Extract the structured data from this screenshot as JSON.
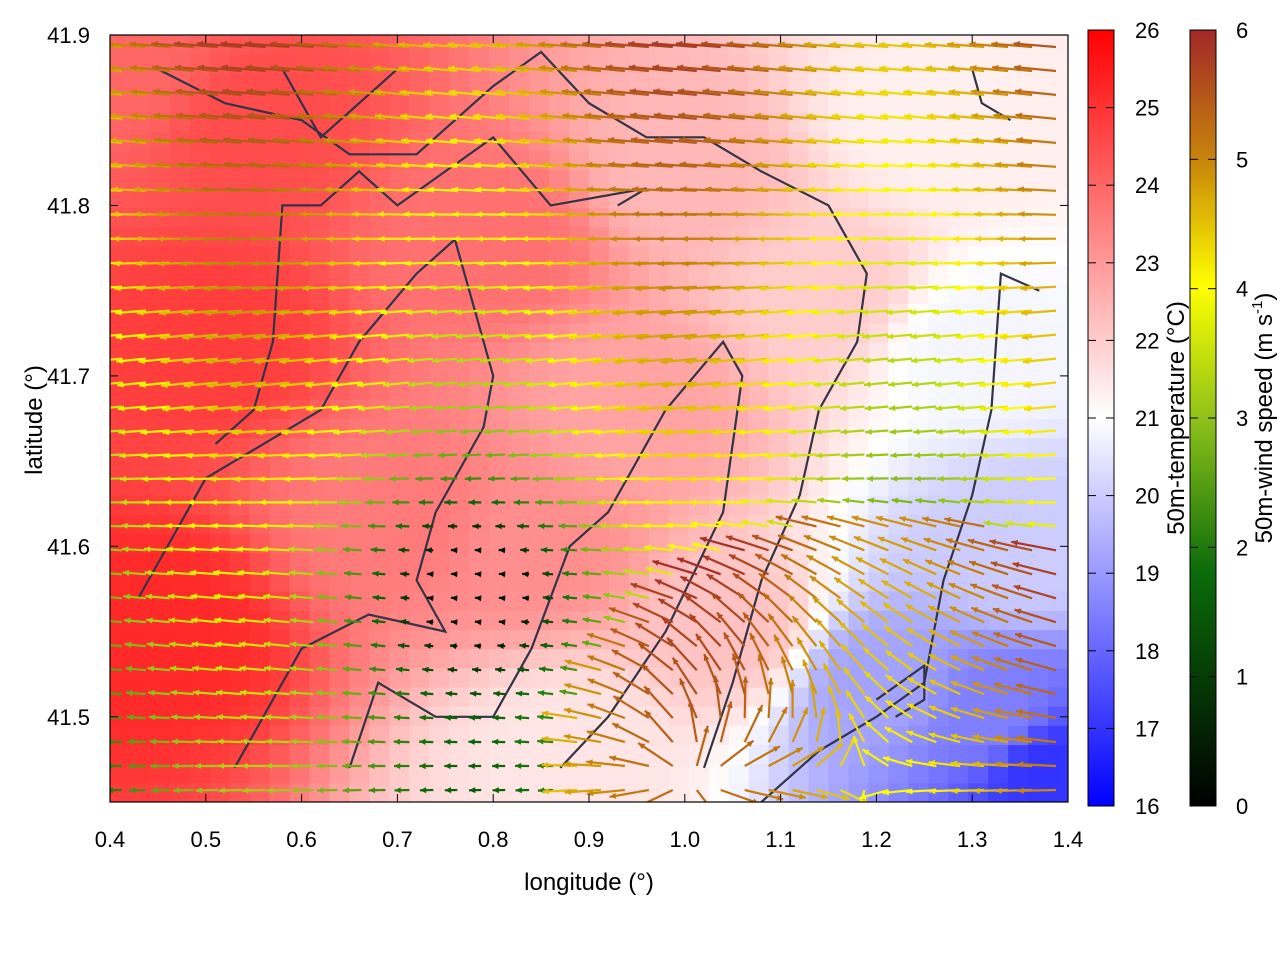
{
  "chart_data": {
    "type": "heatmap",
    "overlay": "wind-vector-field",
    "xlabel": "longitude (°)",
    "ylabel": "latitude (°)",
    "xlim": [
      0.4,
      1.4
    ],
    "ylim": [
      41.45,
      41.9
    ],
    "x_ticks": [
      "0.4",
      "0.5",
      "0.6",
      "0.7",
      "0.8",
      "0.9",
      "1.0",
      "1.1",
      "1.2",
      "1.3",
      "1.4"
    ],
    "y_ticks": [
      "41.5",
      "41.6",
      "41.7",
      "41.8",
      "41.9"
    ],
    "grid": false,
    "temperature_colorbar": {
      "label": "50m-temperature (°C)",
      "range": [
        16,
        26
      ],
      "ticks": [
        "16",
        "17",
        "18",
        "19",
        "20",
        "21",
        "22",
        "23",
        "24",
        "25",
        "26"
      ],
      "colors": [
        "#0000ff",
        "#ffffff",
        "#ff0000"
      ]
    },
    "wind_colorbar": {
      "label_main": "50m-wind speed (m s",
      "label_sup": "-1",
      "label_end": ")",
      "range": [
        0,
        6
      ],
      "ticks": [
        "0",
        "1",
        "2",
        "3",
        "4",
        "5",
        "6"
      ],
      "colors": [
        "#000000",
        "#0a6b0a",
        "#8fc21a",
        "#ffff00",
        "#c8860a",
        "#a02828"
      ]
    },
    "temperature_field": [
      {
        "lon": 0.45,
        "lat": 41.55,
        "t": 25.2
      },
      {
        "lon": 0.5,
        "lat": 41.72,
        "t": 24.8
      },
      {
        "lon": 0.55,
        "lat": 41.85,
        "t": 24.5
      },
      {
        "lon": 0.7,
        "lat": 41.62,
        "t": 23.6
      },
      {
        "lon": 0.8,
        "lat": 41.78,
        "t": 23.8
      },
      {
        "lon": 0.85,
        "lat": 41.6,
        "t": 23.2
      },
      {
        "lon": 0.95,
        "lat": 41.68,
        "t": 22.8
      },
      {
        "lon": 1.0,
        "lat": 41.82,
        "t": 22.4
      },
      {
        "lon": 1.05,
        "lat": 41.55,
        "t": 22.2
      },
      {
        "lon": 1.15,
        "lat": 41.75,
        "t": 22.0
      },
      {
        "lon": 1.25,
        "lat": 41.85,
        "t": 21.3
      },
      {
        "lon": 1.3,
        "lat": 41.72,
        "t": 20.8
      },
      {
        "lon": 1.2,
        "lat": 41.52,
        "t": 19.2
      },
      {
        "lon": 1.32,
        "lat": 41.5,
        "t": 18.5
      },
      {
        "lon": 1.38,
        "lat": 41.47,
        "t": 17.0
      },
      {
        "lon": 0.88,
        "lat": 41.48,
        "t": 21.5
      },
      {
        "lon": 1.35,
        "lat": 41.6,
        "t": 20.0
      },
      {
        "lon": 0.42,
        "lat": 41.88,
        "t": 24.0
      }
    ]
  }
}
